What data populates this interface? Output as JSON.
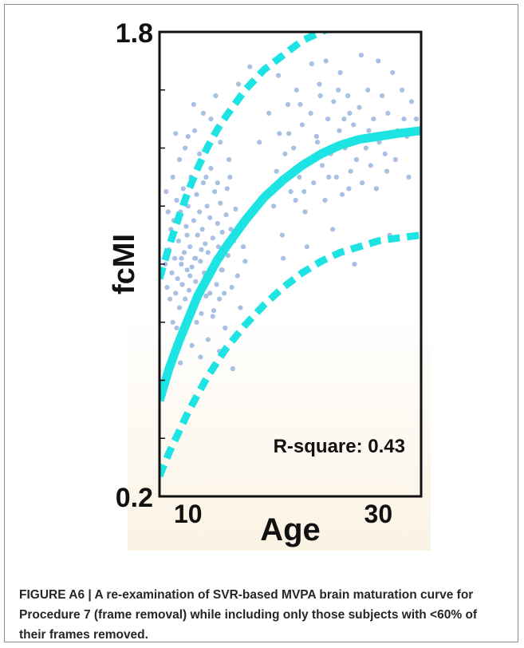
{
  "chart_data": {
    "type": "scatter",
    "xlabel": "Age",
    "ylabel": "fcMI",
    "xlim": [
      7,
      34.5
    ],
    "ylim": [
      0.2,
      1.8
    ],
    "x_tick_labels": [
      {
        "value": 10,
        "label": "10"
      },
      {
        "value": 30,
        "label": "30"
      }
    ],
    "y_tick_labels": [
      {
        "value": 1.8,
        "label": "1.8"
      },
      {
        "value": 0.2,
        "label": "0.2"
      }
    ],
    "y_minor_ticks": [
      0.4,
      0.6,
      0.8,
      1.0,
      1.2,
      1.4,
      1.6
    ],
    "annotation": "R-square: 0.43",
    "colors": {
      "points": "#a8c0e2",
      "fit": "#1ee3e3",
      "axis": "#111111",
      "plot_bg_bottom": "#fbf3e4"
    },
    "points": [
      [
        7.6,
        1.0
      ],
      [
        7.8,
        0.92
      ],
      [
        8.0,
        1.05
      ],
      [
        8.1,
        0.88
      ],
      [
        8.2,
        1.12
      ],
      [
        8.3,
        0.97
      ],
      [
        8.4,
        0.8
      ],
      [
        8.5,
        1.15
      ],
      [
        8.6,
        1.02
      ],
      [
        8.7,
        0.9
      ],
      [
        8.8,
        1.22
      ],
      [
        8.9,
        0.95
      ],
      [
        9.0,
        1.08
      ],
      [
        9.1,
        0.85
      ],
      [
        9.2,
        1.18
      ],
      [
        9.3,
        1.0
      ],
      [
        9.4,
        0.93
      ],
      [
        9.5,
        1.26
      ],
      [
        9.6,
        1.04
      ],
      [
        9.7,
        0.88
      ],
      [
        9.8,
        1.13
      ],
      [
        9.9,
        0.98
      ],
      [
        10.0,
        1.2
      ],
      [
        10.1,
        0.91
      ],
      [
        10.2,
        1.06
      ],
      [
        10.3,
        1.3
      ],
      [
        10.4,
        0.99
      ],
      [
        10.5,
        0.86
      ],
      [
        10.6,
        1.15
      ],
      [
        10.7,
        1.02
      ],
      [
        10.8,
        0.94
      ],
      [
        10.9,
        1.24
      ],
      [
        11.0,
        1.1
      ],
      [
        11.1,
        0.9
      ],
      [
        11.2,
        1.18
      ],
      [
        11.3,
        1.01
      ],
      [
        11.4,
        0.83
      ],
      [
        11.5,
        1.12
      ],
      [
        11.6,
        1.28
      ],
      [
        11.7,
        0.97
      ],
      [
        11.8,
        1.07
      ],
      [
        11.9,
        0.89
      ],
      [
        12.0,
        1.2
      ],
      [
        12.1,
        1.04
      ],
      [
        12.2,
        0.95
      ],
      [
        12.3,
        1.16
      ],
      [
        12.4,
        1.33
      ],
      [
        12.5,
        0.99
      ],
      [
        12.6,
        1.09
      ],
      [
        12.7,
        0.84
      ],
      [
        12.8,
        1.25
      ],
      [
        12.9,
        1.02
      ],
      [
        13.0,
        0.93
      ],
      [
        13.1,
        1.14
      ],
      [
        13.2,
        1.06
      ],
      [
        13.3,
        0.88
      ],
      [
        13.4,
        1.21
      ],
      [
        13.5,
        0.98
      ],
      [
        13.6,
        1.11
      ],
      [
        13.8,
        0.9
      ],
      [
        14.0,
        1.17
      ],
      [
        14.2,
        1.03
      ],
      [
        14.4,
        1.3
      ],
      [
        14.6,
        0.92
      ],
      [
        14.8,
        1.08
      ],
      [
        15.0,
        1.19
      ],
      [
        15.2,
        0.96
      ],
      [
        8.5,
        0.7
      ],
      [
        9.2,
        0.66
      ],
      [
        10.4,
        0.72
      ],
      [
        11.3,
        0.68
      ],
      [
        12.1,
        0.74
      ],
      [
        13.3,
        0.7
      ],
      [
        9.7,
        1.4
      ],
      [
        10.7,
        1.46
      ],
      [
        11.6,
        1.52
      ],
      [
        12.9,
        1.58
      ],
      [
        13.4,
        1.42
      ],
      [
        14.3,
        1.36
      ],
      [
        15.3,
        1.62
      ],
      [
        7.9,
        1.18
      ],
      [
        8.4,
        1.3
      ],
      [
        9.1,
        1.36
      ],
      [
        10.0,
        1.44
      ],
      [
        11.2,
        1.38
      ],
      [
        12.4,
        1.5
      ],
      [
        14.7,
        0.64
      ],
      [
        15.5,
        0.85
      ],
      [
        16.0,
        1.01
      ],
      [
        8.8,
        0.78
      ],
      [
        9.6,
        0.76
      ],
      [
        10.9,
        0.8
      ],
      [
        12.6,
        0.82
      ],
      [
        13.9,
        0.78
      ],
      [
        7.7,
        1.25
      ],
      [
        8.7,
        1.45
      ],
      [
        10.6,
        1.55
      ],
      [
        11.9,
        1.3
      ],
      [
        13.1,
        1.28
      ],
      [
        14.1,
        1.26
      ],
      [
        9.3,
        1.02
      ],
      [
        10.2,
        0.96
      ],
      [
        11.4,
        1.05
      ],
      [
        12.3,
        0.9
      ],
      [
        13.6,
        0.98
      ],
      [
        14.5,
        1.12
      ],
      [
        15.8,
        1.06
      ],
      [
        9.9,
        1.1
      ],
      [
        10.8,
        1.02
      ],
      [
        11.8,
        0.96
      ],
      [
        19.0,
        1.2
      ],
      [
        19.3,
        1.32
      ],
      [
        19.6,
        1.45
      ],
      [
        19.9,
        1.1
      ],
      [
        20.2,
        1.38
      ],
      [
        20.5,
        1.55
      ],
      [
        20.8,
        1.25
      ],
      [
        21.1,
        1.4
      ],
      [
        21.4,
        1.6
      ],
      [
        21.7,
        1.3
      ],
      [
        22.0,
        1.48
      ],
      [
        22.3,
        1.18
      ],
      [
        22.6,
        1.36
      ],
      [
        22.9,
        1.52
      ],
      [
        23.2,
        1.28
      ],
      [
        23.5,
        1.44
      ],
      [
        23.8,
        1.62
      ],
      [
        24.1,
        1.34
      ],
      [
        24.4,
        1.22
      ],
      [
        24.7,
        1.5
      ],
      [
        25.0,
        1.38
      ],
      [
        25.3,
        1.56
      ],
      [
        25.6,
        1.3
      ],
      [
        25.9,
        1.46
      ],
      [
        26.2,
        1.24
      ],
      [
        26.5,
        1.4
      ],
      [
        26.8,
        1.58
      ],
      [
        27.1,
        1.32
      ],
      [
        27.4,
        1.48
      ],
      [
        27.7,
        1.36
      ],
      [
        28.0,
        1.54
      ],
      [
        28.3,
        1.28
      ],
      [
        28.6,
        1.44
      ],
      [
        28.9,
        1.6
      ],
      [
        29.2,
        1.34
      ],
      [
        29.5,
        1.5
      ],
      [
        29.8,
        1.26
      ],
      [
        30.1,
        1.42
      ],
      [
        30.4,
        1.58
      ],
      [
        30.7,
        1.38
      ],
      [
        31.0,
        1.52
      ],
      [
        31.5,
        1.66
      ],
      [
        32.0,
        1.46
      ],
      [
        32.5,
        1.6
      ],
      [
        33.0,
        1.44
      ],
      [
        33.5,
        1.56
      ],
      [
        34.0,
        1.5
      ],
      [
        21.0,
        1.74
      ],
      [
        23.0,
        1.69
      ],
      [
        24.5,
        1.7
      ],
      [
        26.0,
        1.66
      ],
      [
        28.2,
        1.72
      ],
      [
        30.0,
        1.7
      ],
      [
        20.0,
        1.02
      ],
      [
        22.5,
        1.06
      ],
      [
        25.2,
        1.12
      ],
      [
        27.5,
        1.0
      ],
      [
        29.6,
        1.08
      ],
      [
        31.2,
        1.1
      ],
      [
        19.5,
        1.65
      ],
      [
        21.8,
        1.55
      ],
      [
        23.6,
        1.42
      ],
      [
        25.8,
        1.6
      ],
      [
        27.0,
        1.52
      ],
      [
        29.0,
        1.46
      ],
      [
        31.8,
        1.36
      ],
      [
        33.2,
        1.3
      ],
      [
        22.2,
        1.25
      ],
      [
        24.8,
        1.3
      ],
      [
        26.4,
        1.5
      ],
      [
        20.6,
        1.45
      ],
      [
        21.3,
        1.22
      ],
      [
        23.9,
        1.58
      ],
      [
        26.9,
        1.26
      ],
      [
        28.7,
        1.4
      ],
      [
        30.9,
        1.32
      ],
      [
        32.7,
        1.5
      ],
      [
        16.5,
        1.68
      ],
      [
        18.5,
        1.52
      ],
      [
        17.5,
        1.42
      ]
    ],
    "fit": {
      "points": [
        [
          7,
          0.53
        ],
        [
          8,
          0.64
        ],
        [
          9,
          0.73
        ],
        [
          10,
          0.81
        ],
        [
          11,
          0.89
        ],
        [
          12,
          0.95
        ],
        [
          13,
          1.01
        ],
        [
          14,
          1.06
        ],
        [
          16,
          1.15
        ],
        [
          18,
          1.23
        ],
        [
          20,
          1.29
        ],
        [
          22,
          1.34
        ],
        [
          24,
          1.38
        ],
        [
          26,
          1.41
        ],
        [
          28,
          1.43
        ],
        [
          30,
          1.44
        ],
        [
          32,
          1.45
        ],
        [
          34.5,
          1.46
        ]
      ],
      "style": "solid"
    },
    "upper_bound": {
      "points": [
        [
          7,
          0.95
        ],
        [
          8,
          1.06
        ],
        [
          9,
          1.16
        ],
        [
          10,
          1.25
        ],
        [
          11,
          1.33
        ],
        [
          12,
          1.4
        ],
        [
          13,
          1.46
        ],
        [
          14,
          1.51
        ],
        [
          16,
          1.6
        ],
        [
          18,
          1.67
        ],
        [
          20,
          1.72
        ],
        [
          22,
          1.77
        ],
        [
          24,
          1.8
        ],
        [
          26,
          1.83
        ],
        [
          28,
          1.85
        ],
        [
          30,
          1.87
        ],
        [
          32,
          1.88
        ],
        [
          34.5,
          1.89
        ]
      ],
      "style": "dashed"
    },
    "lower_bound": {
      "points": [
        [
          7,
          0.27
        ],
        [
          8,
          0.35
        ],
        [
          9,
          0.42
        ],
        [
          10,
          0.49
        ],
        [
          11,
          0.55
        ],
        [
          12,
          0.61
        ],
        [
          13,
          0.66
        ],
        [
          14,
          0.71
        ],
        [
          16,
          0.79
        ],
        [
          18,
          0.86
        ],
        [
          20,
          0.92
        ],
        [
          22,
          0.97
        ],
        [
          24,
          1.01
        ],
        [
          26,
          1.04
        ],
        [
          28,
          1.06
        ],
        [
          30,
          1.08
        ],
        [
          32,
          1.09
        ],
        [
          34.5,
          1.1
        ]
      ],
      "style": "dashed"
    }
  },
  "caption": "FIGURE A6 | A re-examination of SVR-based MVPA brain maturation curve for Procedure 7 (frame removal) while including only those subjects with <60% of their frames removed."
}
